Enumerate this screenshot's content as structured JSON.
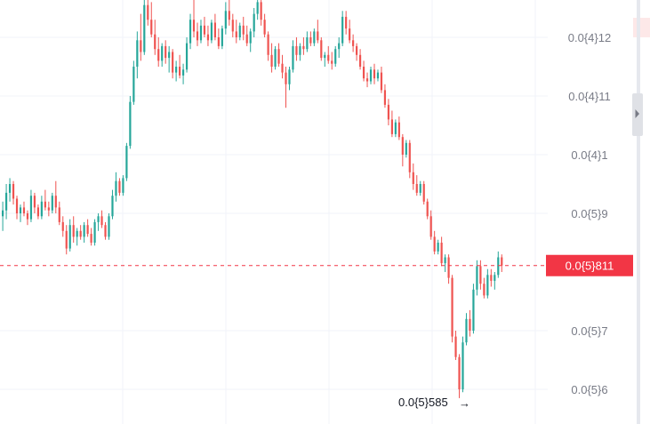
{
  "chart_data": {
    "type": "candlestick",
    "y_axis": {
      "tick_labels": [
        "0.0{4}12",
        "0.0{4}11",
        "0.0{4}1",
        "0.0{5}9",
        "0.0{5}7",
        "0.0{5}6"
      ],
      "tick_values": [
        1.2e-05,
        1.1e-05,
        1e-05,
        9e-06,
        7e-06,
        6e-06
      ],
      "ylim": [
        5.7e-06,
        1.26e-05
      ]
    },
    "current_price": {
      "label": "0.0{5}811",
      "value": 8.11e-06
    },
    "min_marker": {
      "label": "0.0{5}585",
      "value": 5.85e-06
    },
    "colors": {
      "up": "#26a69a",
      "down": "#ef5350",
      "price_line": "#f23645",
      "grid": "#f0f3fa",
      "axis_text": "#787b86"
    },
    "candles": [
      [
        8.95,
        9.2,
        8.7,
        9.05
      ],
      [
        9.05,
        9.5,
        8.9,
        9.35
      ],
      [
        9.35,
        9.6,
        9.2,
        9.5
      ],
      [
        9.5,
        9.55,
        9.15,
        9.25
      ],
      [
        9.25,
        9.3,
        8.9,
        9.0
      ],
      [
        9.0,
        9.15,
        8.85,
        9.1
      ],
      [
        9.1,
        9.2,
        8.95,
        9.0
      ],
      [
        9.0,
        9.05,
        8.8,
        8.9
      ],
      [
        8.9,
        9.4,
        8.85,
        9.3
      ],
      [
        9.3,
        9.35,
        9.0,
        9.1
      ],
      [
        9.1,
        9.15,
        8.9,
        8.95
      ],
      [
        8.95,
        9.3,
        8.9,
        9.2
      ],
      [
        9.2,
        9.4,
        9.05,
        9.1
      ],
      [
        9.1,
        9.2,
        8.95,
        9.05
      ],
      [
        9.05,
        9.35,
        9.0,
        9.3
      ],
      [
        9.3,
        9.55,
        9.0,
        9.1
      ],
      [
        9.1,
        9.2,
        8.8,
        8.85
      ],
      [
        8.85,
        8.95,
        8.6,
        8.7
      ],
      [
        8.7,
        8.8,
        8.3,
        8.4
      ],
      [
        8.4,
        8.9,
        8.35,
        8.8
      ],
      [
        8.8,
        8.95,
        8.5,
        8.6
      ],
      [
        8.6,
        8.75,
        8.45,
        8.7
      ],
      [
        8.7,
        8.8,
        8.55,
        8.6
      ],
      [
        8.6,
        8.85,
        8.5,
        8.8
      ],
      [
        8.8,
        8.9,
        8.6,
        8.65
      ],
      [
        8.65,
        8.75,
        8.45,
        8.5
      ],
      [
        8.5,
        8.9,
        8.45,
        8.85
      ],
      [
        8.85,
        9.0,
        8.7,
        8.95
      ],
      [
        8.95,
        9.05,
        8.75,
        8.8
      ],
      [
        8.8,
        8.85,
        8.55,
        8.6
      ],
      [
        8.6,
        9.0,
        8.55,
        8.95
      ],
      [
        8.95,
        9.4,
        8.9,
        9.3
      ],
      [
        9.3,
        9.7,
        9.2,
        9.55
      ],
      [
        9.55,
        9.6,
        9.3,
        9.35
      ],
      [
        9.35,
        9.65,
        9.3,
        9.6
      ],
      [
        9.6,
        10.2,
        9.55,
        10.15
      ],
      [
        10.15,
        11.0,
        10.1,
        10.9
      ],
      [
        10.9,
        11.6,
        10.85,
        11.5
      ],
      [
        11.5,
        12.1,
        11.3,
        11.95
      ],
      [
        11.95,
        12.4,
        11.6,
        11.75
      ],
      [
        11.75,
        12.7,
        11.7,
        12.55
      ],
      [
        12.55,
        12.7,
        12.2,
        12.3
      ],
      [
        12.3,
        12.6,
        12.0,
        12.05
      ],
      [
        12.05,
        12.3,
        11.7,
        11.8
      ],
      [
        11.8,
        12.0,
        11.5,
        11.6
      ],
      [
        11.6,
        11.9,
        11.5,
        11.85
      ],
      [
        11.85,
        11.95,
        11.55,
        11.65
      ],
      [
        11.65,
        11.85,
        11.4,
        11.75
      ],
      [
        11.75,
        11.8,
        11.3,
        11.4
      ],
      [
        11.4,
        11.6,
        11.25,
        11.5
      ],
      [
        11.5,
        11.7,
        11.3,
        11.35
      ],
      [
        11.35,
        11.55,
        11.2,
        11.45
      ],
      [
        11.45,
        12.0,
        11.4,
        11.9
      ],
      [
        11.9,
        12.4,
        11.8,
        12.3
      ],
      [
        12.3,
        12.7,
        12.0,
        12.1
      ],
      [
        12.1,
        12.25,
        11.85,
        11.95
      ],
      [
        11.95,
        12.3,
        11.9,
        12.2
      ],
      [
        12.2,
        12.35,
        12.0,
        12.05
      ],
      [
        12.05,
        12.2,
        11.85,
        11.95
      ],
      [
        11.95,
        12.3,
        11.9,
        12.25
      ],
      [
        12.25,
        12.4,
        11.95,
        12.0
      ],
      [
        12.0,
        12.15,
        11.8,
        11.85
      ],
      [
        11.85,
        12.2,
        11.8,
        12.15
      ],
      [
        12.15,
        12.6,
        12.05,
        12.45
      ],
      [
        12.45,
        12.7,
        12.2,
        12.3
      ],
      [
        12.3,
        12.4,
        12.0,
        12.1
      ],
      [
        12.1,
        12.3,
        11.9,
        12.0
      ],
      [
        12.0,
        12.25,
        11.95,
        12.2
      ],
      [
        12.2,
        12.35,
        11.95,
        12.05
      ],
      [
        12.05,
        12.2,
        11.85,
        11.9
      ],
      [
        11.9,
        12.15,
        11.75,
        12.1
      ],
      [
        12.1,
        12.5,
        12.0,
        12.4
      ],
      [
        12.4,
        12.7,
        12.3,
        12.6
      ],
      [
        12.6,
        12.7,
        12.2,
        12.3
      ],
      [
        12.3,
        12.4,
        12.0,
        12.05
      ],
      [
        12.05,
        12.1,
        11.6,
        11.7
      ],
      [
        11.7,
        11.9,
        11.4,
        11.5
      ],
      [
        11.5,
        11.85,
        11.45,
        11.8
      ],
      [
        11.8,
        11.9,
        11.5,
        11.55
      ],
      [
        11.55,
        11.7,
        11.3,
        11.4
      ],
      [
        11.4,
        11.5,
        10.8,
        11.2
      ],
      [
        11.2,
        11.5,
        11.1,
        11.45
      ],
      [
        11.45,
        11.95,
        11.4,
        11.85
      ],
      [
        11.85,
        12.0,
        11.6,
        11.7
      ],
      [
        11.7,
        11.9,
        11.6,
        11.85
      ],
      [
        11.85,
        12.0,
        11.7,
        11.8
      ],
      [
        11.8,
        12.1,
        11.75,
        12.0
      ],
      [
        12.0,
        12.1,
        11.85,
        11.9
      ],
      [
        11.9,
        12.15,
        11.85,
        12.1
      ],
      [
        12.1,
        12.3,
        11.9,
        11.95
      ],
      [
        11.95,
        12.0,
        11.6,
        11.65
      ],
      [
        11.65,
        11.75,
        11.5,
        11.7
      ],
      [
        11.7,
        11.85,
        11.55,
        11.6
      ],
      [
        11.6,
        11.75,
        11.45,
        11.55
      ],
      [
        11.55,
        11.85,
        11.5,
        11.8
      ],
      [
        11.8,
        12.0,
        11.65,
        11.9
      ],
      [
        11.9,
        12.45,
        11.85,
        12.35
      ],
      [
        12.35,
        12.45,
        12.05,
        12.15
      ],
      [
        12.15,
        12.3,
        11.9,
        11.95
      ],
      [
        11.95,
        12.05,
        11.75,
        11.85
      ],
      [
        11.85,
        11.9,
        11.6,
        11.7
      ],
      [
        11.7,
        11.8,
        11.45,
        11.5
      ],
      [
        11.5,
        11.6,
        11.25,
        11.3
      ],
      [
        11.3,
        11.4,
        11.15,
        11.25
      ],
      [
        11.25,
        11.5,
        11.2,
        11.45
      ],
      [
        11.45,
        11.55,
        11.2,
        11.3
      ],
      [
        11.3,
        11.45,
        11.25,
        11.4
      ],
      [
        11.4,
        11.5,
        11.05,
        11.1
      ],
      [
        11.1,
        11.2,
        10.8,
        10.85
      ],
      [
        10.85,
        10.95,
        10.5,
        10.6
      ],
      [
        10.6,
        10.75,
        10.3,
        10.35
      ],
      [
        10.35,
        10.6,
        10.3,
        10.55
      ],
      [
        10.55,
        10.65,
        10.25,
        10.3
      ],
      [
        10.3,
        10.35,
        9.8,
        10.0
      ],
      [
        10.0,
        10.25,
        9.95,
        10.2
      ],
      [
        10.2,
        10.25,
        9.6,
        9.7
      ],
      [
        9.7,
        9.85,
        9.4,
        9.5
      ],
      [
        9.5,
        9.65,
        9.3,
        9.35
      ],
      [
        9.35,
        9.55,
        9.3,
        9.5
      ],
      [
        9.5,
        9.55,
        9.15,
        9.2
      ],
      [
        9.2,
        9.25,
        8.9,
        8.95
      ],
      [
        8.95,
        9.05,
        8.55,
        8.6
      ],
      [
        8.6,
        8.7,
        8.3,
        8.35
      ],
      [
        8.35,
        8.55,
        8.3,
        8.5
      ],
      [
        8.5,
        8.6,
        8.1,
        8.15
      ],
      [
        8.15,
        8.3,
        8.0,
        8.25
      ],
      [
        8.25,
        8.3,
        7.8,
        7.9
      ],
      [
        7.9,
        7.95,
        6.8,
        6.9
      ],
      [
        6.9,
        7.0,
        6.5,
        6.55
      ],
      [
        6.55,
        6.6,
        5.85,
        6.0
      ],
      [
        6.0,
        6.9,
        5.95,
        6.8
      ],
      [
        6.8,
        7.3,
        6.75,
        7.2
      ],
      [
        7.2,
        7.35,
        6.9,
        7.0
      ],
      [
        7.0,
        7.8,
        6.95,
        7.7
      ],
      [
        7.7,
        8.2,
        7.6,
        8.1
      ],
      [
        8.1,
        8.2,
        7.7,
        7.8
      ],
      [
        7.8,
        7.9,
        7.55,
        7.6
      ],
      [
        7.6,
        8.05,
        7.55,
        7.95
      ],
      [
        7.95,
        8.05,
        7.75,
        7.85
      ],
      [
        7.85,
        8.0,
        7.7,
        7.95
      ],
      [
        7.95,
        8.35,
        7.9,
        8.25
      ],
      [
        8.25,
        8.3,
        8.0,
        8.11
      ]
    ]
  }
}
